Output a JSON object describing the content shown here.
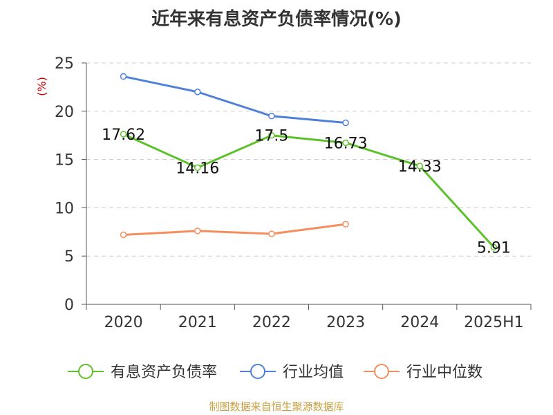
{
  "chart_data": {
    "type": "line",
    "title": "近年来有息资产负债率情况(%)",
    "ylabel": "(%)",
    "categories": [
      "2020",
      "2021",
      "2022",
      "2023",
      "2024",
      "2025H1"
    ],
    "y_ticks": [
      "0",
      "5",
      "10",
      "15",
      "20",
      "25"
    ],
    "ylim": [
      0,
      25
    ],
    "grid": true,
    "legend_position": "bottom",
    "series": [
      {
        "name": "有息资产负债率",
        "color": "#5cc12a",
        "values": [
          17.62,
          14.16,
          17.5,
          16.73,
          14.33,
          5.91
        ],
        "labels": [
          "17.62",
          "14.16",
          "17.5",
          "16.73",
          "14.33",
          "5.91"
        ]
      },
      {
        "name": "行业均值",
        "color": "#4f80d8",
        "values": [
          23.6,
          22.0,
          19.5,
          18.8,
          null,
          null
        ]
      },
      {
        "name": "行业中位数",
        "color": "#f58d5c",
        "values": [
          7.2,
          7.6,
          7.3,
          8.3,
          null,
          null
        ]
      }
    ],
    "ylabel_color": "#cc0000",
    "source": "制图数据来自恒生聚源数据库",
    "source_color": "#c8a040"
  }
}
